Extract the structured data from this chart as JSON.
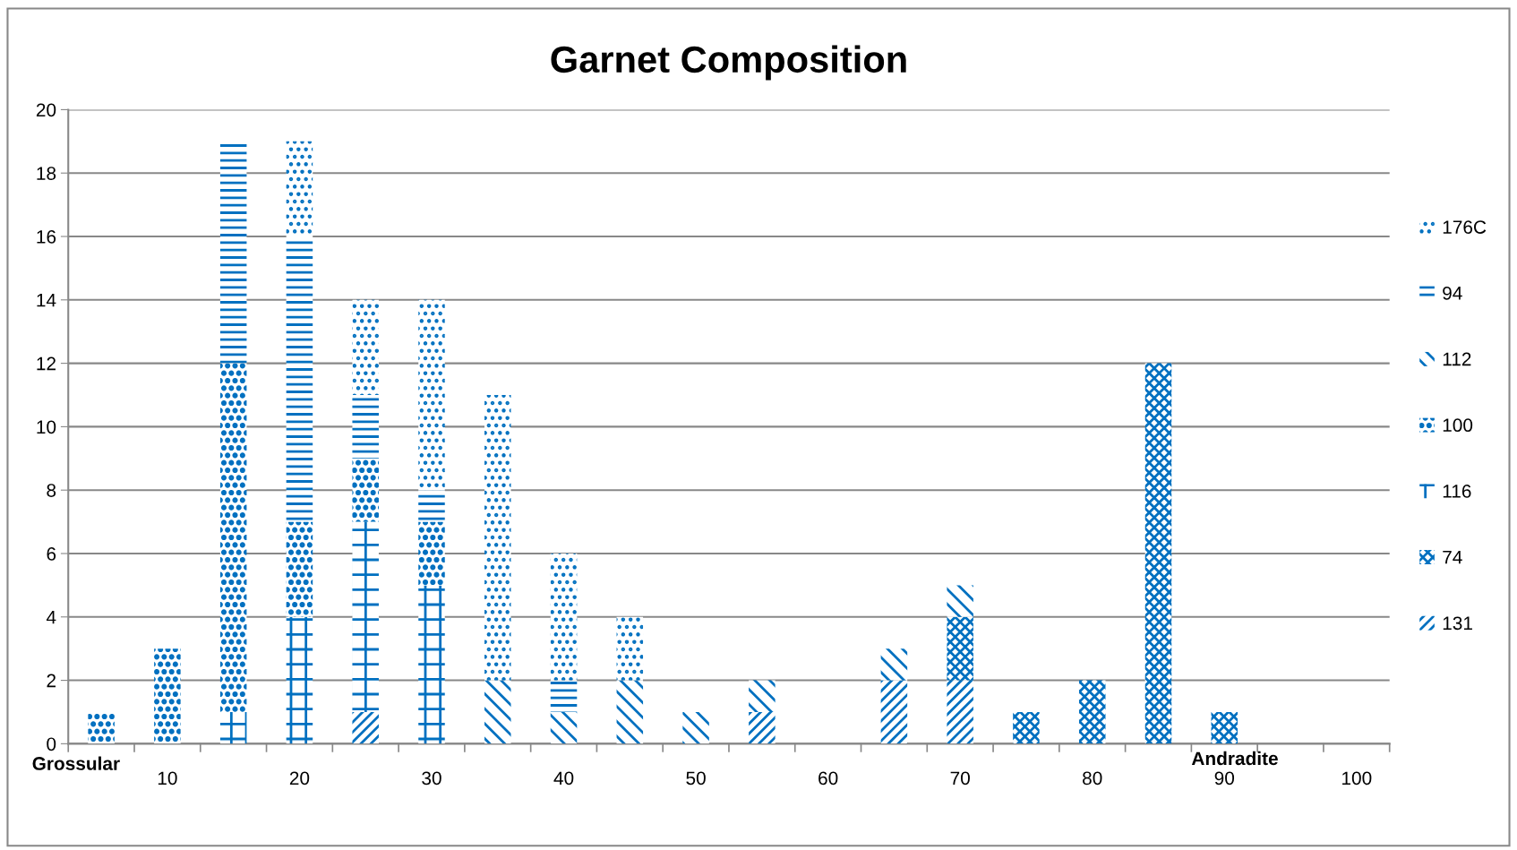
{
  "chart_data": {
    "type": "bar",
    "title": "Garnet Composition",
    "stacked": true,
    "categories": [
      null,
      "10",
      null,
      "20",
      null,
      "30",
      null,
      "40",
      null,
      "50",
      null,
      "60",
      null,
      "70",
      null,
      "80",
      null,
      "90",
      null,
      "100"
    ],
    "series": [
      {
        "name": "131",
        "color": "#0070c0",
        "values": [
          0,
          0,
          0,
          0,
          1,
          0,
          0,
          0,
          0,
          0,
          1,
          0,
          2,
          2,
          0,
          0,
          0,
          0,
          0,
          0
        ]
      },
      {
        "name": "74",
        "color": "#0070c0",
        "values": [
          0,
          0,
          0,
          0,
          0,
          0,
          0,
          0,
          0,
          0,
          0,
          0,
          0,
          2,
          1,
          2,
          12,
          1,
          0,
          0
        ]
      },
      {
        "name": "116",
        "color": "#0070c0",
        "values": [
          0,
          0,
          1,
          4,
          6,
          5,
          0,
          0,
          0,
          0,
          0,
          0,
          0,
          0,
          0,
          0,
          0,
          0,
          0,
          0
        ]
      },
      {
        "name": "100",
        "color": "#0070c0",
        "values": [
          1,
          3,
          11,
          3,
          2,
          2,
          0,
          0,
          0,
          0,
          0,
          0,
          0,
          0,
          0,
          0,
          0,
          0,
          0,
          0
        ]
      },
      {
        "name": "112",
        "color": "#0070c0",
        "values": [
          0,
          0,
          0,
          0,
          0,
          0,
          2,
          1,
          2,
          1,
          1,
          0,
          1,
          1,
          0,
          0,
          0,
          0,
          0,
          0
        ]
      },
      {
        "name": "94",
        "color": "#0070c0",
        "values": [
          0,
          0,
          7,
          9,
          2,
          1,
          0,
          1,
          0,
          0,
          0,
          0,
          0,
          0,
          0,
          0,
          0,
          0,
          0,
          0
        ]
      },
      {
        "name": "176C",
        "color": "#0070c0",
        "values": [
          0,
          0,
          0,
          3,
          3,
          6,
          9,
          4,
          2,
          0,
          0,
          0,
          0,
          0,
          0,
          0,
          0,
          0,
          0,
          0
        ]
      }
    ],
    "ylim": [
      0,
      20
    ],
    "yticks": [
      0,
      2,
      4,
      6,
      8,
      10,
      12,
      14,
      16,
      18,
      20
    ],
    "grid": "y",
    "legend": "right",
    "annotations": [
      "Grossular",
      "Andradite"
    ]
  }
}
